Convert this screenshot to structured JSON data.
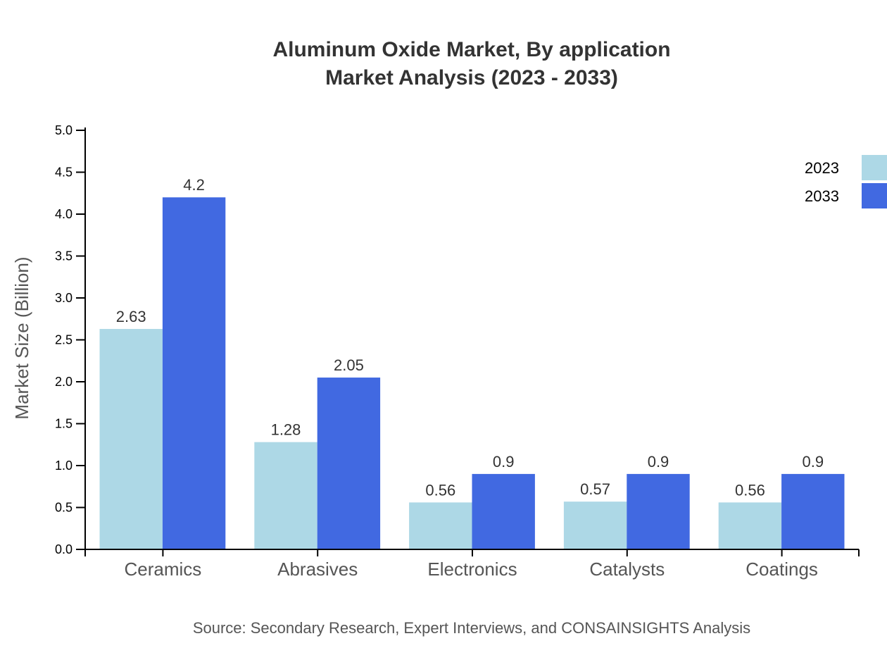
{
  "chart_data": {
    "type": "bar",
    "title": "Aluminum Oxide Market, By application",
    "subtitle": "Market Analysis (2023 - 2033)",
    "xlabel": "",
    "ylabel": "Market Size (Billion)",
    "ylim": [
      0,
      5.0
    ],
    "yticks": [
      "0.0",
      "0.5",
      "1.0",
      "1.5",
      "2.0",
      "2.5",
      "3.0",
      "3.5",
      "4.0",
      "4.5",
      "5.0"
    ],
    "categories": [
      "Ceramics",
      "Abrasives",
      "Electronics",
      "Catalysts",
      "Coatings"
    ],
    "series": [
      {
        "name": "2023",
        "color": "#add8e6",
        "values": [
          2.63,
          1.28,
          0.56,
          0.57,
          0.56
        ]
      },
      {
        "name": "2033",
        "color": "#4169e1",
        "values": [
          4.2,
          2.05,
          0.9,
          0.9,
          0.9
        ]
      }
    ],
    "legend_position": "top-right",
    "grid": false,
    "source": "Source: Secondary Research, Expert Interviews, and CONSAINSIGHTS Analysis"
  }
}
